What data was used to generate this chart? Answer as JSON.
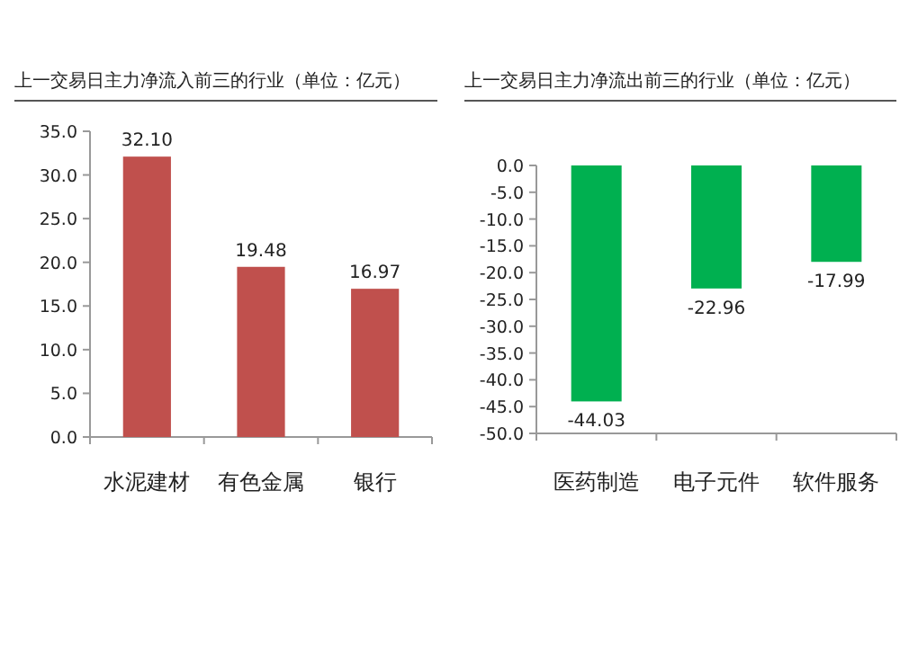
{
  "chart_data": [
    {
      "type": "bar",
      "title": "上一交易日主力净流入前三的行业（单位：亿元）",
      "categories": [
        "水泥建材",
        "有色金属",
        "银行"
      ],
      "values": [
        32.1,
        19.48,
        16.97
      ],
      "value_labels": [
        "32.10",
        "19.48",
        "16.97"
      ],
      "color": "#c0504d",
      "ylim": [
        0,
        35
      ],
      "yticks": [
        {
          "value": 0,
          "label": "0.0"
        },
        {
          "value": 5,
          "label": "5.0"
        },
        {
          "value": 10,
          "label": "10.0"
        },
        {
          "value": 15,
          "label": "15.0"
        },
        {
          "value": 20,
          "label": "20.0"
        },
        {
          "value": 25,
          "label": "25.0"
        },
        {
          "value": 30,
          "label": "30.0"
        },
        {
          "value": 35,
          "label": "35.0"
        }
      ]
    },
    {
      "type": "bar",
      "title": "上一交易日主力净流出前三的行业（单位：亿元）",
      "categories": [
        "医药制造",
        "电子元件",
        "软件服务"
      ],
      "values": [
        -44.03,
        -22.96,
        -17.99
      ],
      "value_labels": [
        "-44.03",
        "-22.96",
        "-17.99"
      ],
      "color": "#00b050",
      "ylim": [
        -50,
        0
      ],
      "yticks": [
        {
          "value": -50,
          "label": "-50.0"
        },
        {
          "value": -45,
          "label": "-45.0"
        },
        {
          "value": -40,
          "label": "-40.0"
        },
        {
          "value": -35,
          "label": "-35.0"
        },
        {
          "value": -30,
          "label": "-30.0"
        },
        {
          "value": -25,
          "label": "-25.0"
        },
        {
          "value": -20,
          "label": "-20.0"
        },
        {
          "value": -15,
          "label": "-15.0"
        },
        {
          "value": -10,
          "label": "-10.0"
        },
        {
          "value": -5,
          "label": "-5.0"
        },
        {
          "value": 0,
          "label": "0.0"
        }
      ]
    }
  ]
}
